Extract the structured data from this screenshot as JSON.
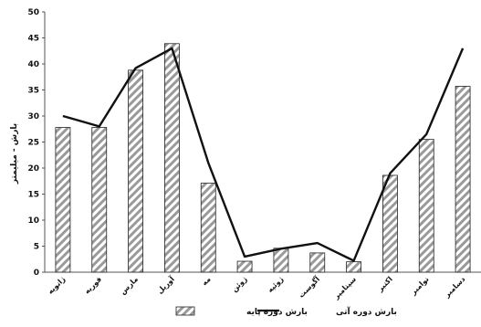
{
  "chart_data": {
    "type": "bar",
    "categories": [
      "ژانویه",
      "فوریه",
      "مارس",
      "آوریل",
      "مه",
      "ژوئن",
      "ژوئیه",
      "آگوست",
      "سپتامبر",
      "اکتبر",
      "نوامبر",
      "دسامبر"
    ],
    "series": [
      {
        "name": "بارش دوره پایه",
        "type": "bar",
        "values": [
          27.8,
          27.8,
          38.8,
          43.9,
          17.1,
          2.1,
          4.6,
          3.7,
          2.0,
          18.6,
          25.5,
          35.7
        ]
      },
      {
        "name": "بارش دوره آتی",
        "type": "line",
        "values": [
          30.0,
          28.0,
          39.2,
          43.0,
          21.0,
          3.0,
          4.5,
          5.6,
          2.2,
          19.0,
          26.5,
          43.0
        ]
      }
    ],
    "ylabel": "بارش - میلیمتر",
    "xlabel": "",
    "title": "",
    "ylim": [
      0,
      50
    ],
    "yticks": [
      0,
      5,
      10,
      15,
      20,
      25,
      30,
      35,
      40,
      45,
      50
    ],
    "grid": false,
    "legend_position": "bottom-center",
    "colors": {
      "bar_hatch": "#9a9a9a",
      "bar_outline": "#222222",
      "line": "#111111",
      "axis": "#555555"
    }
  }
}
